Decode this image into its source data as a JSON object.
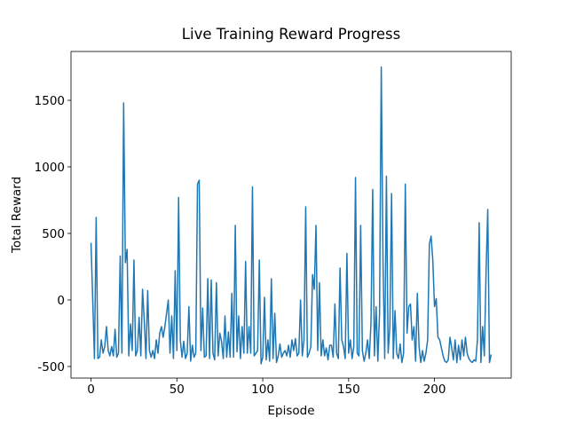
{
  "chart_data": {
    "type": "line",
    "title": "Live Training Reward Progress",
    "xlabel": "Episode",
    "ylabel": "Total Reward",
    "x": [
      0,
      1,
      2,
      3,
      4,
      5,
      6,
      7,
      8,
      9,
      10,
      11,
      12,
      13,
      14,
      15,
      16,
      17,
      18,
      19,
      20,
      21,
      22,
      23,
      24,
      25,
      26,
      27,
      28,
      29,
      30,
      31,
      32,
      33,
      34,
      35,
      36,
      37,
      38,
      39,
      40,
      41,
      42,
      43,
      44,
      45,
      46,
      47,
      48,
      49,
      50,
      51,
      52,
      53,
      54,
      55,
      56,
      57,
      58,
      59,
      60,
      61,
      62,
      63,
      64,
      65,
      66,
      67,
      68,
      69,
      70,
      71,
      72,
      73,
      74,
      75,
      76,
      77,
      78,
      79,
      80,
      81,
      82,
      83,
      84,
      85,
      86,
      87,
      88,
      89,
      90,
      91,
      92,
      93,
      94,
      95,
      96,
      97,
      98,
      99,
      100,
      101,
      102,
      103,
      104,
      105,
      106,
      107,
      108,
      109,
      110,
      111,
      112,
      113,
      114,
      115,
      116,
      117,
      118,
      119,
      120,
      121,
      122,
      123,
      124,
      125,
      126,
      127,
      128,
      129,
      130,
      131,
      132,
      133,
      134,
      135,
      136,
      137,
      138,
      139,
      140,
      141,
      142,
      143,
      144,
      145,
      146,
      147,
      148,
      149,
      150,
      151,
      152,
      153,
      154,
      155,
      156,
      157,
      158,
      159,
      160,
      161,
      162,
      163,
      164,
      165,
      166,
      167,
      168,
      169,
      170,
      171,
      172,
      173,
      174,
      175,
      176,
      177,
      178,
      179,
      180,
      181,
      182,
      183,
      184,
      185,
      186,
      187,
      188,
      189,
      190,
      191,
      192,
      193,
      194,
      195,
      196,
      197,
      198,
      199,
      200,
      201,
      202,
      203,
      204,
      205,
      206,
      207,
      208,
      209,
      210,
      211,
      212,
      213,
      214,
      215,
      216,
      217,
      218,
      219,
      220,
      221,
      222,
      223,
      224,
      225,
      226,
      227,
      228,
      229,
      230,
      231,
      232,
      233
    ],
    "series": [
      {
        "name": "Total Reward",
        "color": "#1f77b4",
        "values": [
          430,
          0,
          -440,
          620,
          -440,
          -430,
          -300,
          -400,
          -350,
          -200,
          -380,
          -420,
          -350,
          -420,
          -220,
          -430,
          -400,
          330,
          -400,
          1480,
          280,
          380,
          -420,
          -180,
          -380,
          300,
          -420,
          -380,
          -130,
          -420,
          80,
          -150,
          -440,
          70,
          -380,
          -430,
          -380,
          -440,
          -300,
          -400,
          -250,
          -200,
          -280,
          -200,
          -100,
          0,
          -400,
          -120,
          -440,
          220,
          -380,
          770,
          -300,
          -430,
          -310,
          -440,
          -400,
          -50,
          -460,
          -340,
          -430,
          -400,
          870,
          900,
          -380,
          -60,
          -430,
          -420,
          160,
          -440,
          150,
          -400,
          -450,
          130,
          -420,
          -250,
          -310,
          -440,
          -120,
          -430,
          -240,
          -430,
          50,
          -430,
          560,
          -390,
          -120,
          -440,
          -200,
          -400,
          290,
          -400,
          -200,
          -400,
          850,
          -420,
          -400,
          -380,
          300,
          -480,
          -430,
          20,
          -450,
          -300,
          -460,
          160,
          -440,
          -100,
          -470,
          -420,
          -330,
          -430,
          -400,
          -380,
          -420,
          -340,
          -430,
          -300,
          -380,
          -290,
          -420,
          -400,
          0,
          -420,
          -300,
          700,
          -430,
          -400,
          -350,
          190,
          80,
          560,
          -380,
          130,
          -420,
          -300,
          -420,
          -360,
          -450,
          -340,
          -340,
          -430,
          -30,
          -400,
          -440,
          240,
          -300,
          -350,
          -440,
          350,
          -400,
          -300,
          -440,
          -350,
          920,
          -400,
          -420,
          560,
          -380,
          -460,
          -400,
          -300,
          -440,
          -180,
          830,
          -420,
          -50,
          -460,
          -100,
          1750,
          300,
          -440,
          930,
          -400,
          -200,
          800,
          -440,
          -80,
          -400,
          -440,
          -330,
          -470,
          -400,
          870,
          -250,
          -50,
          -30,
          -300,
          -200,
          -460,
          50,
          -350,
          -470,
          -380,
          -460,
          -400,
          -300,
          420,
          480,
          300,
          -50,
          10,
          -280,
          -300,
          -360,
          -420,
          -460,
          -470,
          -450,
          -280,
          -360,
          -450,
          -300,
          -470,
          -340,
          -450,
          -300,
          -420,
          -280,
          -400,
          -440,
          -460,
          -470,
          -450,
          -460,
          -300,
          580,
          -470,
          -200,
          -420,
          200,
          680,
          -470,
          -410
        ]
      }
    ],
    "xlim": [
      -11.65,
      244.65
    ],
    "ylim": [
      -587,
      1867
    ],
    "xticks": [
      0,
      50,
      100,
      150,
      200
    ],
    "yticks": [
      -500,
      0,
      500,
      1000,
      1500
    ]
  }
}
